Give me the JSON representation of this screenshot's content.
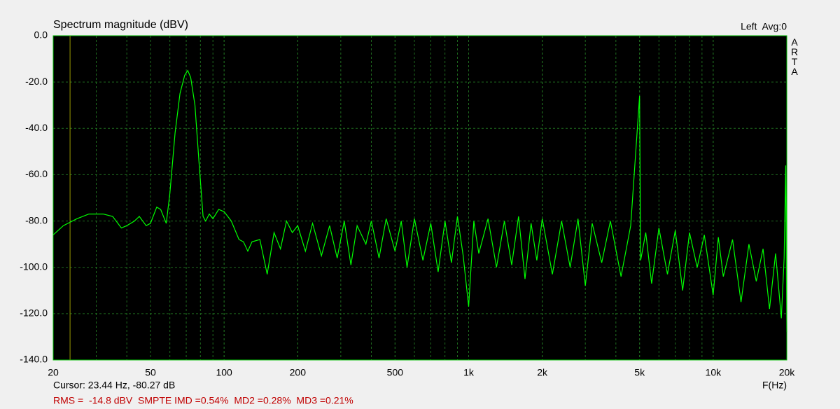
{
  "chart_data": {
    "type": "line",
    "title": "Spectrum magnitude (dBV)",
    "channel_label": "Left  Avg:0",
    "brand": "ARTA",
    "x_label": "F(Hz)",
    "cursor": {
      "text": "Cursor: 23.44 Hz, -80.27 dB",
      "x": 23.44,
      "color": "#9a9a00"
    },
    "measurements": "RMS =  -14.8 dBV  SMPTE IMD =0.54%  MD2 =0.28%  MD3 =0.21%",
    "x_scale": "log",
    "grid": true,
    "minor_grid": true,
    "xlim": [
      20,
      20000
    ],
    "xticks": [
      20,
      50,
      100,
      200,
      500,
      {
        "value": 1000,
        "label": "1k"
      },
      {
        "value": 2000,
        "label": "2k"
      },
      {
        "value": 5000,
        "label": "5k"
      },
      {
        "value": 10000,
        "label": "10k"
      },
      {
        "value": 20000,
        "label": "20k"
      }
    ],
    "ylim": [
      -140,
      0
    ],
    "yticks": [
      {
        "value": 0,
        "label": "0.0"
      },
      {
        "value": -20,
        "label": "-20.0"
      },
      {
        "value": -40,
        "label": "-40.0"
      },
      {
        "value": -60,
        "label": "-60.0"
      },
      {
        "value": -80,
        "label": "-80.0"
      },
      {
        "value": -100,
        "label": "-100.0"
      },
      {
        "value": -120,
        "label": "-120.0"
      },
      {
        "value": -140,
        "label": "-140.0"
      }
    ],
    "x": [
      20,
      22,
      25,
      28,
      32,
      35,
      38,
      40,
      43,
      45,
      48,
      50,
      53,
      55,
      58,
      60,
      63,
      66,
      69,
      71,
      73,
      76,
      79,
      82,
      84,
      87,
      90,
      95,
      100,
      107,
      115,
      120,
      125,
      130,
      140,
      150,
      160,
      170,
      180,
      190,
      200,
      215,
      230,
      250,
      270,
      290,
      310,
      330,
      350,
      380,
      400,
      430,
      460,
      500,
      530,
      560,
      600,
      650,
      700,
      750,
      800,
      850,
      900,
      950,
      1000,
      1050,
      1100,
      1200,
      1300,
      1400,
      1500,
      1600,
      1700,
      1800,
      1900,
      2000,
      2200,
      2400,
      2600,
      2800,
      3000,
      3200,
      3500,
      3800,
      4200,
      4600,
      5000,
      5050,
      5300,
      5600,
      6000,
      6500,
      7000,
      7500,
      8000,
      8600,
      9200,
      10000,
      10500,
      11000,
      12000,
      13000,
      14000,
      15000,
      16000,
      17000,
      18000,
      19000,
      19500,
      19800,
      20000
    ],
    "series": [
      {
        "name": "Left",
        "color": "#00ff00",
        "values": [
          -86,
          -82,
          -79,
          -77,
          -77,
          -78,
          -83,
          -82,
          -80,
          -78,
          -82,
          -81,
          -74,
          -75,
          -81,
          -68,
          -42,
          -25,
          -17,
          -15,
          -18,
          -30,
          -55,
          -78,
          -80,
          -77,
          -79,
          -75,
          -76,
          -80,
          -88,
          -89,
          -93,
          -89,
          -88,
          -103,
          -85,
          -92,
          -80,
          -85,
          -82,
          -93,
          -81,
          -95,
          -82,
          -96,
          -80,
          -99,
          -82,
          -90,
          -80,
          -96,
          -79,
          -93,
          -80,
          -100,
          -79,
          -97,
          -81,
          -102,
          -80,
          -98,
          -78,
          -95,
          -117,
          -80,
          -94,
          -79,
          -100,
          -80,
          -99,
          -78,
          -105,
          -81,
          -97,
          -79,
          -103,
          -80,
          -100,
          -79,
          -108,
          -81,
          -98,
          -80,
          -104,
          -82,
          -26,
          -97,
          -85,
          -107,
          -83,
          -103,
          -84,
          -110,
          -85,
          -100,
          -86,
          -112,
          -87,
          -104,
          -88,
          -115,
          -90,
          -106,
          -92,
          -118,
          -94,
          -122,
          -96,
          -56,
          -128
        ]
      }
    ]
  }
}
